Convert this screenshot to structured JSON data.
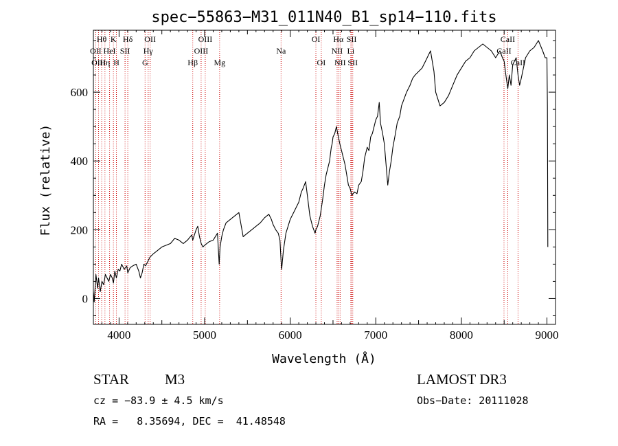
{
  "chart_data": {
    "type": "line",
    "title": "spec−55863−M31_011N40_B1_sp14−110.fits",
    "xlabel": "Wavelength (Å)",
    "ylabel": "Flux (relative)",
    "xlim": [
      3700,
      9100
    ],
    "ylim": [
      -75,
      780
    ],
    "x_ticks": [
      4000,
      5000,
      6000,
      7000,
      8000,
      9000
    ],
    "y_ticks": [
      0,
      200,
      400,
      600
    ],
    "series": [
      {
        "name": "flux",
        "x": [
          3700,
          3710,
          3730,
          3750,
          3760,
          3780,
          3800,
          3820,
          3840,
          3860,
          3880,
          3900,
          3920,
          3934,
          3950,
          3969,
          3990,
          4010,
          4030,
          4060,
          4090,
          4102,
          4130,
          4160,
          4200,
          4230,
          4250,
          4270,
          4290,
          4310,
          4340,
          4360,
          4400,
          4450,
          4500,
          4550,
          4600,
          4650,
          4700,
          4750,
          4800,
          4850,
          4861,
          4880,
          4900,
          4920,
          4940,
          4960,
          4980,
          5000,
          5050,
          5100,
          5150,
          5170,
          5180,
          5200,
          5220,
          5250,
          5300,
          5350,
          5400,
          5450,
          5500,
          5550,
          5600,
          5650,
          5700,
          5750,
          5780,
          5800,
          5830,
          5860,
          5880,
          5893,
          5900,
          5920,
          5950,
          6000,
          6050,
          6080,
          6100,
          6120,
          6130,
          6150,
          6180,
          6200,
          6230,
          6260,
          6290,
          6300,
          6320,
          6350,
          6380,
          6400,
          6420,
          6440,
          6460,
          6470,
          6480,
          6490,
          6500,
          6520,
          6540,
          6563,
          6580,
          6600,
          6620,
          6640,
          6660,
          6680,
          6700,
          6720,
          6750,
          6780,
          6800,
          6830,
          6850,
          6870,
          6900,
          6920,
          6940,
          6960,
          6980,
          7000,
          7020,
          7040,
          7055,
          7080,
          7100,
          7120,
          7140,
          7160,
          7180,
          7200,
          7230,
          7250,
          7280,
          7300,
          7330,
          7360,
          7400,
          7430,
          7460,
          7500,
          7540,
          7580,
          7600,
          7620,
          7640,
          7660,
          7680,
          7700,
          7750,
          7800,
          7850,
          7900,
          7950,
          8000,
          8050,
          8100,
          8150,
          8200,
          8250,
          8300,
          8350,
          8400,
          8450,
          8480,
          8500,
          8520,
          8542,
          8560,
          8580,
          8600,
          8640,
          8662,
          8680,
          8700,
          8750,
          8800,
          8850,
          8900,
          8950,
          8980,
          9000,
          9005,
          9010
        ],
        "y": [
          20,
          -10,
          70,
          30,
          60,
          20,
          50,
          40,
          70,
          60,
          50,
          70,
          60,
          45,
          80,
          60,
          85,
          80,
          100,
          85,
          95,
          75,
          90,
          95,
          100,
          80,
          60,
          75,
          100,
          95,
          110,
          120,
          130,
          140,
          150,
          155,
          160,
          175,
          170,
          160,
          170,
          185,
          170,
          185,
          200,
          210,
          180,
          160,
          150,
          155,
          165,
          170,
          190,
          100,
          150,
          180,
          200,
          220,
          230,
          240,
          250,
          180,
          190,
          200,
          210,
          220,
          235,
          245,
          230,
          215,
          200,
          190,
          170,
          110,
          85,
          140,
          190,
          230,
          255,
          270,
          280,
          300,
          310,
          320,
          340,
          300,
          240,
          210,
          190,
          200,
          210,
          240,
          290,
          330,
          360,
          380,
          400,
          420,
          440,
          450,
          470,
          480,
          500,
          470,
          450,
          430,
          410,
          390,
          360,
          330,
          320,
          300,
          310,
          305,
          330,
          340,
          370,
          410,
          440,
          430,
          470,
          480,
          500,
          520,
          530,
          570,
          510,
          480,
          450,
          390,
          330,
          370,
          400,
          440,
          480,
          510,
          530,
          560,
          580,
          600,
          620,
          640,
          650,
          660,
          670,
          690,
          700,
          710,
          720,
          690,
          660,
          600,
          560,
          570,
          590,
          620,
          650,
          670,
          690,
          700,
          720,
          730,
          740,
          730,
          720,
          700,
          720,
          700,
          690,
          650,
          610,
          650,
          620,
          680,
          700,
          650,
          620,
          640,
          700,
          720,
          730,
          750,
          720,
          700,
          700,
          560,
          150
        ]
      }
    ],
    "spectral_lines": [
      {
        "label": "Hθ",
        "wavelength": 3797,
        "row": 1
      },
      {
        "label": "K",
        "wavelength": 3934,
        "row": 1
      },
      {
        "label": "Hδ",
        "wavelength": 4102,
        "row": 1
      },
      {
        "label": "OII",
        "wavelength": 4363,
        "row": 1
      },
      {
        "label": "OIII",
        "wavelength": 5007,
        "row": 1
      },
      {
        "label": "Na",
        "wavelength": 5893,
        "row": 2
      },
      {
        "label": "OI",
        "wavelength": 6300,
        "row": 1
      },
      {
        "label": "Hα",
        "wavelength": 6563,
        "row": 1
      },
      {
        "label": "SII",
        "wavelength": 6717,
        "row": 1
      },
      {
        "label": "CaII",
        "wavelength": 8542,
        "row": 1
      },
      {
        "label": "OII",
        "wavelength": 3727,
        "row": 2
      },
      {
        "label": "HeI",
        "wavelength": 3889,
        "row": 2
      },
      {
        "label": "SII",
        "wavelength": 4070,
        "row": 2
      },
      {
        "label": "Hγ",
        "wavelength": 4340,
        "row": 2
      },
      {
        "label": "OIII",
        "wavelength": 4959,
        "row": 2
      },
      {
        "label": "NII",
        "wavelength": 6548,
        "row": 2
      },
      {
        "label": "Li",
        "wavelength": 6708,
        "row": 2
      },
      {
        "label": "CaII",
        "wavelength": 8498,
        "row": 2
      },
      {
        "label": "OIII",
        "wavelength": 3760,
        "row": 3
      },
      {
        "label": "Hη",
        "wavelength": 3835,
        "row": 3
      },
      {
        "label": "H",
        "wavelength": 3969,
        "row": 3
      },
      {
        "label": "G",
        "wavelength": 4304,
        "row": 3
      },
      {
        "label": "Hβ",
        "wavelength": 4861,
        "row": 3
      },
      {
        "label": "Mg",
        "wavelength": 5175,
        "row": 3
      },
      {
        "label": "OI",
        "wavelength": 6363,
        "row": 3
      },
      {
        "label": "NII",
        "wavelength": 6583,
        "row": 3
      },
      {
        "label": "SII",
        "wavelength": 6731,
        "row": 3
      },
      {
        "label": "CaII",
        "wavelength": 8662,
        "row": 3
      }
    ],
    "line_marker_color": "#cc0000"
  },
  "info": {
    "object_class": "STAR",
    "subclass": "M3",
    "survey": "LAMOST DR3",
    "redshift_text": "cz = −83.9 ± 4.5 km/s",
    "obs_date_text": "Obs−Date: 20111028",
    "coords_text": "RA =   8.35694, DEC =  41.48548"
  }
}
